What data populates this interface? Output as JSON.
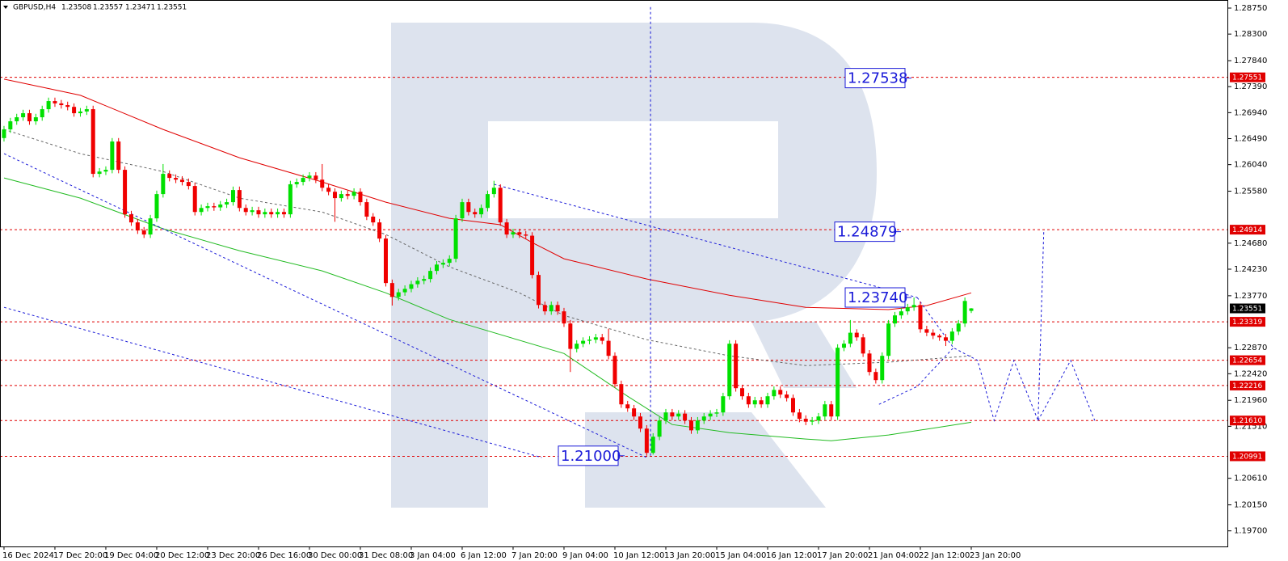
{
  "chart_data": {
    "type": "candlestick",
    "title": "GBPUSD,H4",
    "open": [
      1.265,
      1.2665,
      1.2679,
      1.2686,
      1.2693,
      1.2679,
      1.2686,
      1.27,
      1.2714,
      1.271,
      1.2707,
      1.2704,
      1.2693,
      1.2696,
      1.27,
      1.2588,
      1.2592,
      1.2595,
      1.2644,
      1.2595,
      1.2518,
      1.2504,
      1.249,
      1.2483,
      1.2511,
      1.2553,
      1.2588,
      1.2581,
      1.2578,
      1.2574,
      1.2567,
      1.2522,
      1.2529,
      1.2532,
      1.253,
      1.2535,
      1.2539,
      1.256,
      1.2529,
      1.2522,
      1.2525,
      1.2518,
      1.2522,
      1.2518,
      1.2522,
      1.2518,
      1.257,
      1.2574,
      1.2581,
      1.2585,
      1.2578,
      1.2564,
      1.2557,
      1.2546,
      1.2553,
      1.255,
      1.2557,
      1.2539,
      1.2514,
      1.2504,
      1.2476,
      1.2399,
      1.2375,
      1.2383,
      1.2389,
      1.2397,
      1.2403,
      1.2406,
      1.242,
      1.2431,
      1.2434,
      1.2441,
      1.2511,
      1.2539,
      1.2522,
      1.2518,
      1.2529,
      1.2553,
      1.2564,
      1.2504,
      1.2483,
      1.2487,
      1.2483,
      1.2481,
      1.2413,
      1.2361,
      1.235,
      1.2361,
      1.235,
      1.2329,
      1.2285,
      1.2294,
      1.2299,
      1.2301,
      1.2305,
      1.2299,
      1.2273,
      1.2224,
      1.2189,
      1.2182,
      1.2168,
      1.2147,
      1.2105,
      1.2133,
      1.2161,
      1.2175,
      1.2168,
      1.2173,
      1.2161,
      1.2144,
      1.2161,
      1.2168,
      1.2173,
      1.2175,
      1.2203,
      1.2294,
      1.2217,
      1.2203,
      1.2189,
      1.2196,
      1.2189,
      1.2203,
      1.2214,
      1.2206,
      1.22,
      1.2175,
      1.2164,
      1.2159,
      1.2161,
      1.2168,
      1.2189,
      1.2168,
      1.2287,
      1.2294,
      1.2313,
      1.2305,
      1.2277,
      1.2245,
      1.2231,
      1.2273,
      1.2329,
      1.2343,
      1.235,
      1.2357,
      1.2361,
      1.2319,
      1.2313,
      1.2308,
      1.2305,
      1.2299,
      1.2315,
      1.2329,
      1.23508
    ],
    "high": [
      1.2671,
      1.2685,
      1.2692,
      1.2699,
      1.2699,
      1.2692,
      1.2706,
      1.272,
      1.272,
      1.2716,
      1.2713,
      1.271,
      1.2702,
      1.2706,
      1.2706,
      1.2598,
      1.2601,
      1.265,
      1.265,
      1.2601,
      1.2524,
      1.251,
      1.2496,
      1.2517,
      1.2559,
      1.2605,
      1.2594,
      1.2587,
      1.2584,
      1.258,
      1.2573,
      1.2535,
      1.2538,
      1.2538,
      1.2541,
      1.2545,
      1.2566,
      1.2566,
      1.2535,
      1.2531,
      1.2531,
      1.2528,
      1.2528,
      1.2528,
      1.2528,
      1.2576,
      1.258,
      1.2587,
      1.2591,
      1.2591,
      1.2605,
      1.257,
      1.2563,
      1.2559,
      1.2559,
      1.2563,
      1.2563,
      1.2545,
      1.252,
      1.251,
      1.2482,
      1.2405,
      1.2389,
      1.2395,
      1.2403,
      1.2409,
      1.2412,
      1.2426,
      1.2437,
      1.244,
      1.2447,
      1.2517,
      1.2545,
      1.2545,
      1.2528,
      1.2535,
      1.2559,
      1.2576,
      1.257,
      1.251,
      1.2493,
      1.2493,
      1.2489,
      1.2487,
      1.2419,
      1.2367,
      1.2367,
      1.2367,
      1.2356,
      1.2335,
      1.23,
      1.2305,
      1.2307,
      1.2311,
      1.2311,
      1.232,
      1.2279,
      1.223,
      1.2195,
      1.2188,
      1.2174,
      1.2153,
      1.2139,
      1.2167,
      1.2181,
      1.2181,
      1.2179,
      1.2179,
      1.2167,
      1.2167,
      1.2174,
      1.2179,
      1.2181,
      1.2209,
      1.23,
      1.23,
      1.2223,
      1.2209,
      1.2202,
      1.2202,
      1.2209,
      1.222,
      1.222,
      1.2212,
      1.2206,
      1.2181,
      1.217,
      1.2167,
      1.2174,
      1.2195,
      1.2195,
      1.2293,
      1.23,
      1.2335,
      1.2319,
      1.2311,
      1.2283,
      1.2251,
      1.2279,
      1.2335,
      1.2349,
      1.2356,
      1.2363,
      1.2374,
      1.2367,
      1.2325,
      1.2319,
      1.2311,
      1.2311,
      1.2321,
      1.2335,
      1.2374,
      1.23557
    ],
    "low": [
      1.2644,
      1.2659,
      1.2673,
      1.268,
      1.2673,
      1.2673,
      1.268,
      1.2694,
      1.2704,
      1.2701,
      1.2698,
      1.2687,
      1.2687,
      1.269,
      1.2582,
      1.2582,
      1.2586,
      1.2589,
      1.2589,
      1.2512,
      1.2498,
      1.2484,
      1.2477,
      1.2477,
      1.2505,
      1.2547,
      1.2575,
      1.2572,
      1.2568,
      1.2561,
      1.2516,
      1.2516,
      1.2523,
      1.2524,
      1.2524,
      1.2529,
      1.2533,
      1.2523,
      1.2516,
      1.2516,
      1.2512,
      1.2512,
      1.2512,
      1.2512,
      1.2512,
      1.2512,
      1.2564,
      1.2568,
      1.2575,
      1.2572,
      1.2558,
      1.2551,
      1.2505,
      1.254,
      1.2544,
      1.2544,
      1.2533,
      1.2508,
      1.2498,
      1.247,
      1.2393,
      1.236,
      1.2369,
      1.2377,
      1.2383,
      1.2391,
      1.2397,
      1.24,
      1.2414,
      1.2425,
      1.2428,
      1.2435,
      1.2505,
      1.2516,
      1.2512,
      1.2512,
      1.2523,
      1.2547,
      1.2498,
      1.2477,
      1.2477,
      1.2477,
      1.2475,
      1.2407,
      1.2355,
      1.2344,
      1.2344,
      1.2344,
      1.2323,
      1.2245,
      1.2279,
      1.2288,
      1.2293,
      1.2295,
      1.2293,
      1.2267,
      1.2218,
      1.2183,
      1.2176,
      1.2162,
      1.2141,
      1.21,
      1.2102,
      1.2127,
      1.2155,
      1.2162,
      1.2162,
      1.2155,
      1.2138,
      1.2138,
      1.2155,
      1.2162,
      1.2167,
      1.2169,
      1.2197,
      1.2211,
      1.2197,
      1.2183,
      1.2183,
      1.2183,
      1.2183,
      1.2197,
      1.22,
      1.2194,
      1.2169,
      1.2158,
      1.2153,
      1.2153,
      1.2155,
      1.2162,
      1.2162,
      1.2162,
      1.2281,
      1.2288,
      1.2299,
      1.2271,
      1.2239,
      1.2225,
      1.2225,
      1.2267,
      1.2323,
      1.2337,
      1.2344,
      1.2351,
      1.2313,
      1.2307,
      1.2302,
      1.2299,
      1.229,
      1.2293,
      1.2309,
      1.2323,
      1.23471
    ],
    "close": [
      1.2665,
      1.2679,
      1.2686,
      1.2693,
      1.2679,
      1.2686,
      1.27,
      1.2714,
      1.271,
      1.2707,
      1.2704,
      1.2693,
      1.2696,
      1.27,
      1.2588,
      1.2592,
      1.2595,
      1.2644,
      1.2595,
      1.2518,
      1.2504,
      1.249,
      1.2483,
      1.2511,
      1.2553,
      1.2588,
      1.2581,
      1.2578,
      1.2574,
      1.2567,
      1.2522,
      1.2529,
      1.2532,
      1.253,
      1.2535,
      1.2539,
      1.256,
      1.2529,
      1.2522,
      1.2525,
      1.2518,
      1.2522,
      1.2518,
      1.2522,
      1.2518,
      1.257,
      1.2574,
      1.2581,
      1.2585,
      1.2578,
      1.2564,
      1.2557,
      1.2546,
      1.2553,
      1.255,
      1.2557,
      1.2539,
      1.2514,
      1.2504,
      1.2476,
      1.2399,
      1.2375,
      1.2383,
      1.2389,
      1.2397,
      1.2403,
      1.2406,
      1.242,
      1.2431,
      1.2434,
      1.2441,
      1.2511,
      1.2539,
      1.2522,
      1.2518,
      1.2529,
      1.2553,
      1.2564,
      1.2504,
      1.2483,
      1.2487,
      1.2483,
      1.2481,
      1.2413,
      1.2361,
      1.235,
      1.2361,
      1.235,
      1.2329,
      1.2285,
      1.2294,
      1.2299,
      1.2301,
      1.2305,
      1.2299,
      1.2273,
      1.2224,
      1.2189,
      1.2182,
      1.2168,
      1.2147,
      1.2105,
      1.2133,
      1.2161,
      1.2175,
      1.2168,
      1.2173,
      1.2161,
      1.2144,
      1.2161,
      1.2168,
      1.2173,
      1.2175,
      1.2203,
      1.2294,
      1.2217,
      1.2203,
      1.2189,
      1.2196,
      1.2189,
      1.2203,
      1.2214,
      1.2206,
      1.22,
      1.2175,
      1.2164,
      1.2159,
      1.2161,
      1.2168,
      1.2189,
      1.2168,
      1.2287,
      1.2294,
      1.2313,
      1.2305,
      1.2277,
      1.2245,
      1.2231,
      1.2273,
      1.2329,
      1.2343,
      1.235,
      1.2357,
      1.2361,
      1.2319,
      1.2313,
      1.2308,
      1.2305,
      1.2299,
      1.2315,
      1.2329,
      1.2368,
      1.23551
    ],
    "up_color": "#00e000",
    "down_color": "#f00000",
    "current_price_color": "#000000",
    "xlim": [
      -0.63,
      192.38
    ],
    "xticks": [
      {
        "value": 0,
        "label": "16 Dec 2024"
      },
      {
        "value": 8,
        "label": "17 Dec 20:00"
      },
      {
        "value": 16,
        "label": "19 Dec 04:00"
      },
      {
        "value": 24,
        "label": "20 Dec 12:00"
      },
      {
        "value": 32,
        "label": "23 Dec 20:00"
      },
      {
        "value": 40,
        "label": "26 Dec 16:00"
      },
      {
        "value": 48,
        "label": "30 Dec 00:00"
      },
      {
        "value": 56,
        "label": "31 Dec 08:00"
      },
      {
        "value": 64,
        "label": "3 Jan 04:00"
      },
      {
        "value": 72,
        "label": "6 Jan 12:00"
      },
      {
        "value": 80,
        "label": "7 Jan 20:00"
      },
      {
        "value": 88,
        "label": "9 Jan 04:00"
      },
      {
        "value": 96,
        "label": "10 Jan 12:00"
      },
      {
        "value": 104,
        "label": "13 Jan 20:00"
      },
      {
        "value": 112,
        "label": "15 Jan 04:00"
      },
      {
        "value": 120,
        "label": "16 Jan 12:00"
      },
      {
        "value": 128,
        "label": "17 Jan 20:00"
      },
      {
        "value": 136,
        "label": "21 Jan 04:00"
      },
      {
        "value": 144,
        "label": "22 Jan 12:00"
      },
      {
        "value": 152,
        "label": "23 Jan 20:00"
      }
    ],
    "ylim": [
      1.1943,
      1.2889
    ],
    "yticks": [
      {
        "value": 1.2875,
        "label": "1.28750"
      },
      {
        "value": 1.283,
        "label": "1.28300"
      },
      {
        "value": 1.2784,
        "label": "1.27840"
      },
      {
        "value": 1.2739,
        "label": "1.27390"
      },
      {
        "value": 1.2694,
        "label": "1.26940"
      },
      {
        "value": 1.2649,
        "label": "1.26490"
      },
      {
        "value": 1.2604,
        "label": "1.26040"
      },
      {
        "value": 1.2558,
        "label": "1.25580"
      },
      {
        "value": 1.2468,
        "label": "1.24680"
      },
      {
        "value": 1.2423,
        "label": "1.24230"
      },
      {
        "value": 1.2377,
        "label": "1.23770"
      },
      {
        "value": 1.2287,
        "label": "1.22870"
      },
      {
        "value": 1.2242,
        "label": "1.22420"
      },
      {
        "value": 1.2196,
        "label": "1.21960"
      },
      {
        "value": 1.2151,
        "label": "1.21510"
      },
      {
        "value": 1.2061,
        "label": "1.20610"
      },
      {
        "value": 1.2015,
        "label": "1.20150"
      },
      {
        "value": 1.197,
        "label": "1.19700"
      }
    ],
    "levels": [
      1.27551,
      1.24914,
      1.23319,
      1.22654,
      1.22216,
      {
        "value": 1.2161,
        "label": "1.21610"
      },
      1.20991
    ],
    "level_color": "#e00000",
    "annotations": [
      1.27538,
      1.24879,
      {
        "value": 1.2374,
        "label": "1.23740"
      },
      {
        "value": 1.21,
        "label": "1.21000"
      }
    ],
    "annotation_color": "#1a1ad8",
    "lines": [
      {
        "color": "#e00000",
        "dash": false,
        "x": [
          0,
          12,
          25,
          37,
          50,
          60,
          70,
          78,
          83,
          88,
          101,
          114,
          126,
          139,
          145,
          152
        ],
        "values": [
          1.2752,
          1.2724,
          1.2665,
          1.2616,
          1.2574,
          1.2539,
          1.2511,
          1.25,
          1.2469,
          1.2441,
          1.2406,
          1.2378,
          1.2357,
          1.2353,
          1.236,
          1.2382
        ]
      },
      {
        "color": "#22bb22",
        "dash": false,
        "x": [
          0,
          12,
          25,
          37,
          50,
          60,
          70,
          88,
          98,
          105,
          114,
          126,
          130,
          139,
          152
        ],
        "values": [
          1.2581,
          1.2546,
          1.2493,
          1.2455,
          1.242,
          1.2382,
          1.2336,
          1.2277,
          1.2203,
          1.2154,
          1.214,
          1.2129,
          1.2126,
          1.2136,
          1.2158
        ]
      },
      {
        "color": "#666666",
        "dash": true,
        "x": [
          0,
          12,
          25,
          37,
          50,
          60,
          70,
          81,
          88,
          101,
          114,
          126,
          139,
          152
        ],
        "values": [
          1.2665,
          1.2623,
          1.2592,
          1.2546,
          1.2522,
          1.2483,
          1.2427,
          1.2382,
          1.2343,
          1.2301,
          1.2273,
          1.2256,
          1.2262,
          1.2273
        ]
      },
      {
        "color": "#1a1ad8",
        "dash": true,
        "x": [
          0,
          101
        ],
        "values": [
          1.2623,
          1.2097
        ]
      },
      {
        "color": "#1a1ad8",
        "dash": true,
        "x": [
          0,
          84.5
        ],
        "values": [
          1.2357,
          1.2097
        ]
      },
      {
        "color": "#1a1ad8",
        "dash": true,
        "x": [
          77,
          143.5
        ],
        "values": [
          1.257,
          1.2374
        ]
      },
      {
        "color": "#1a1ad8",
        "dash": true,
        "x": [
          101.6,
          101.6
        ],
        "values": [
          1.21,
          1.2877
        ]
      },
      {
        "color": "#1a1ad8",
        "dash": true,
        "x": [
          137.5,
          143.5,
          149.2
        ],
        "values": [
          1.2189,
          1.222,
          1.2287
        ]
      },
      {
        "color": "#1a1ad8",
        "dash": true,
        "x": [
          143.5,
          149.2,
          153,
          155.6,
          158.7,
          162.5,
          163.4
        ],
        "values": [
          1.2374,
          1.2287,
          1.2265,
          1.2161,
          1.2265,
          1.2161,
          1.2491
        ]
      },
      {
        "color": "#1a1ad8",
        "dash": true,
        "x": [
          162.5,
          167.6,
          171.4
        ],
        "values": [
          1.2161,
          1.2265,
          1.2161
        ]
      }
    ]
  }
}
